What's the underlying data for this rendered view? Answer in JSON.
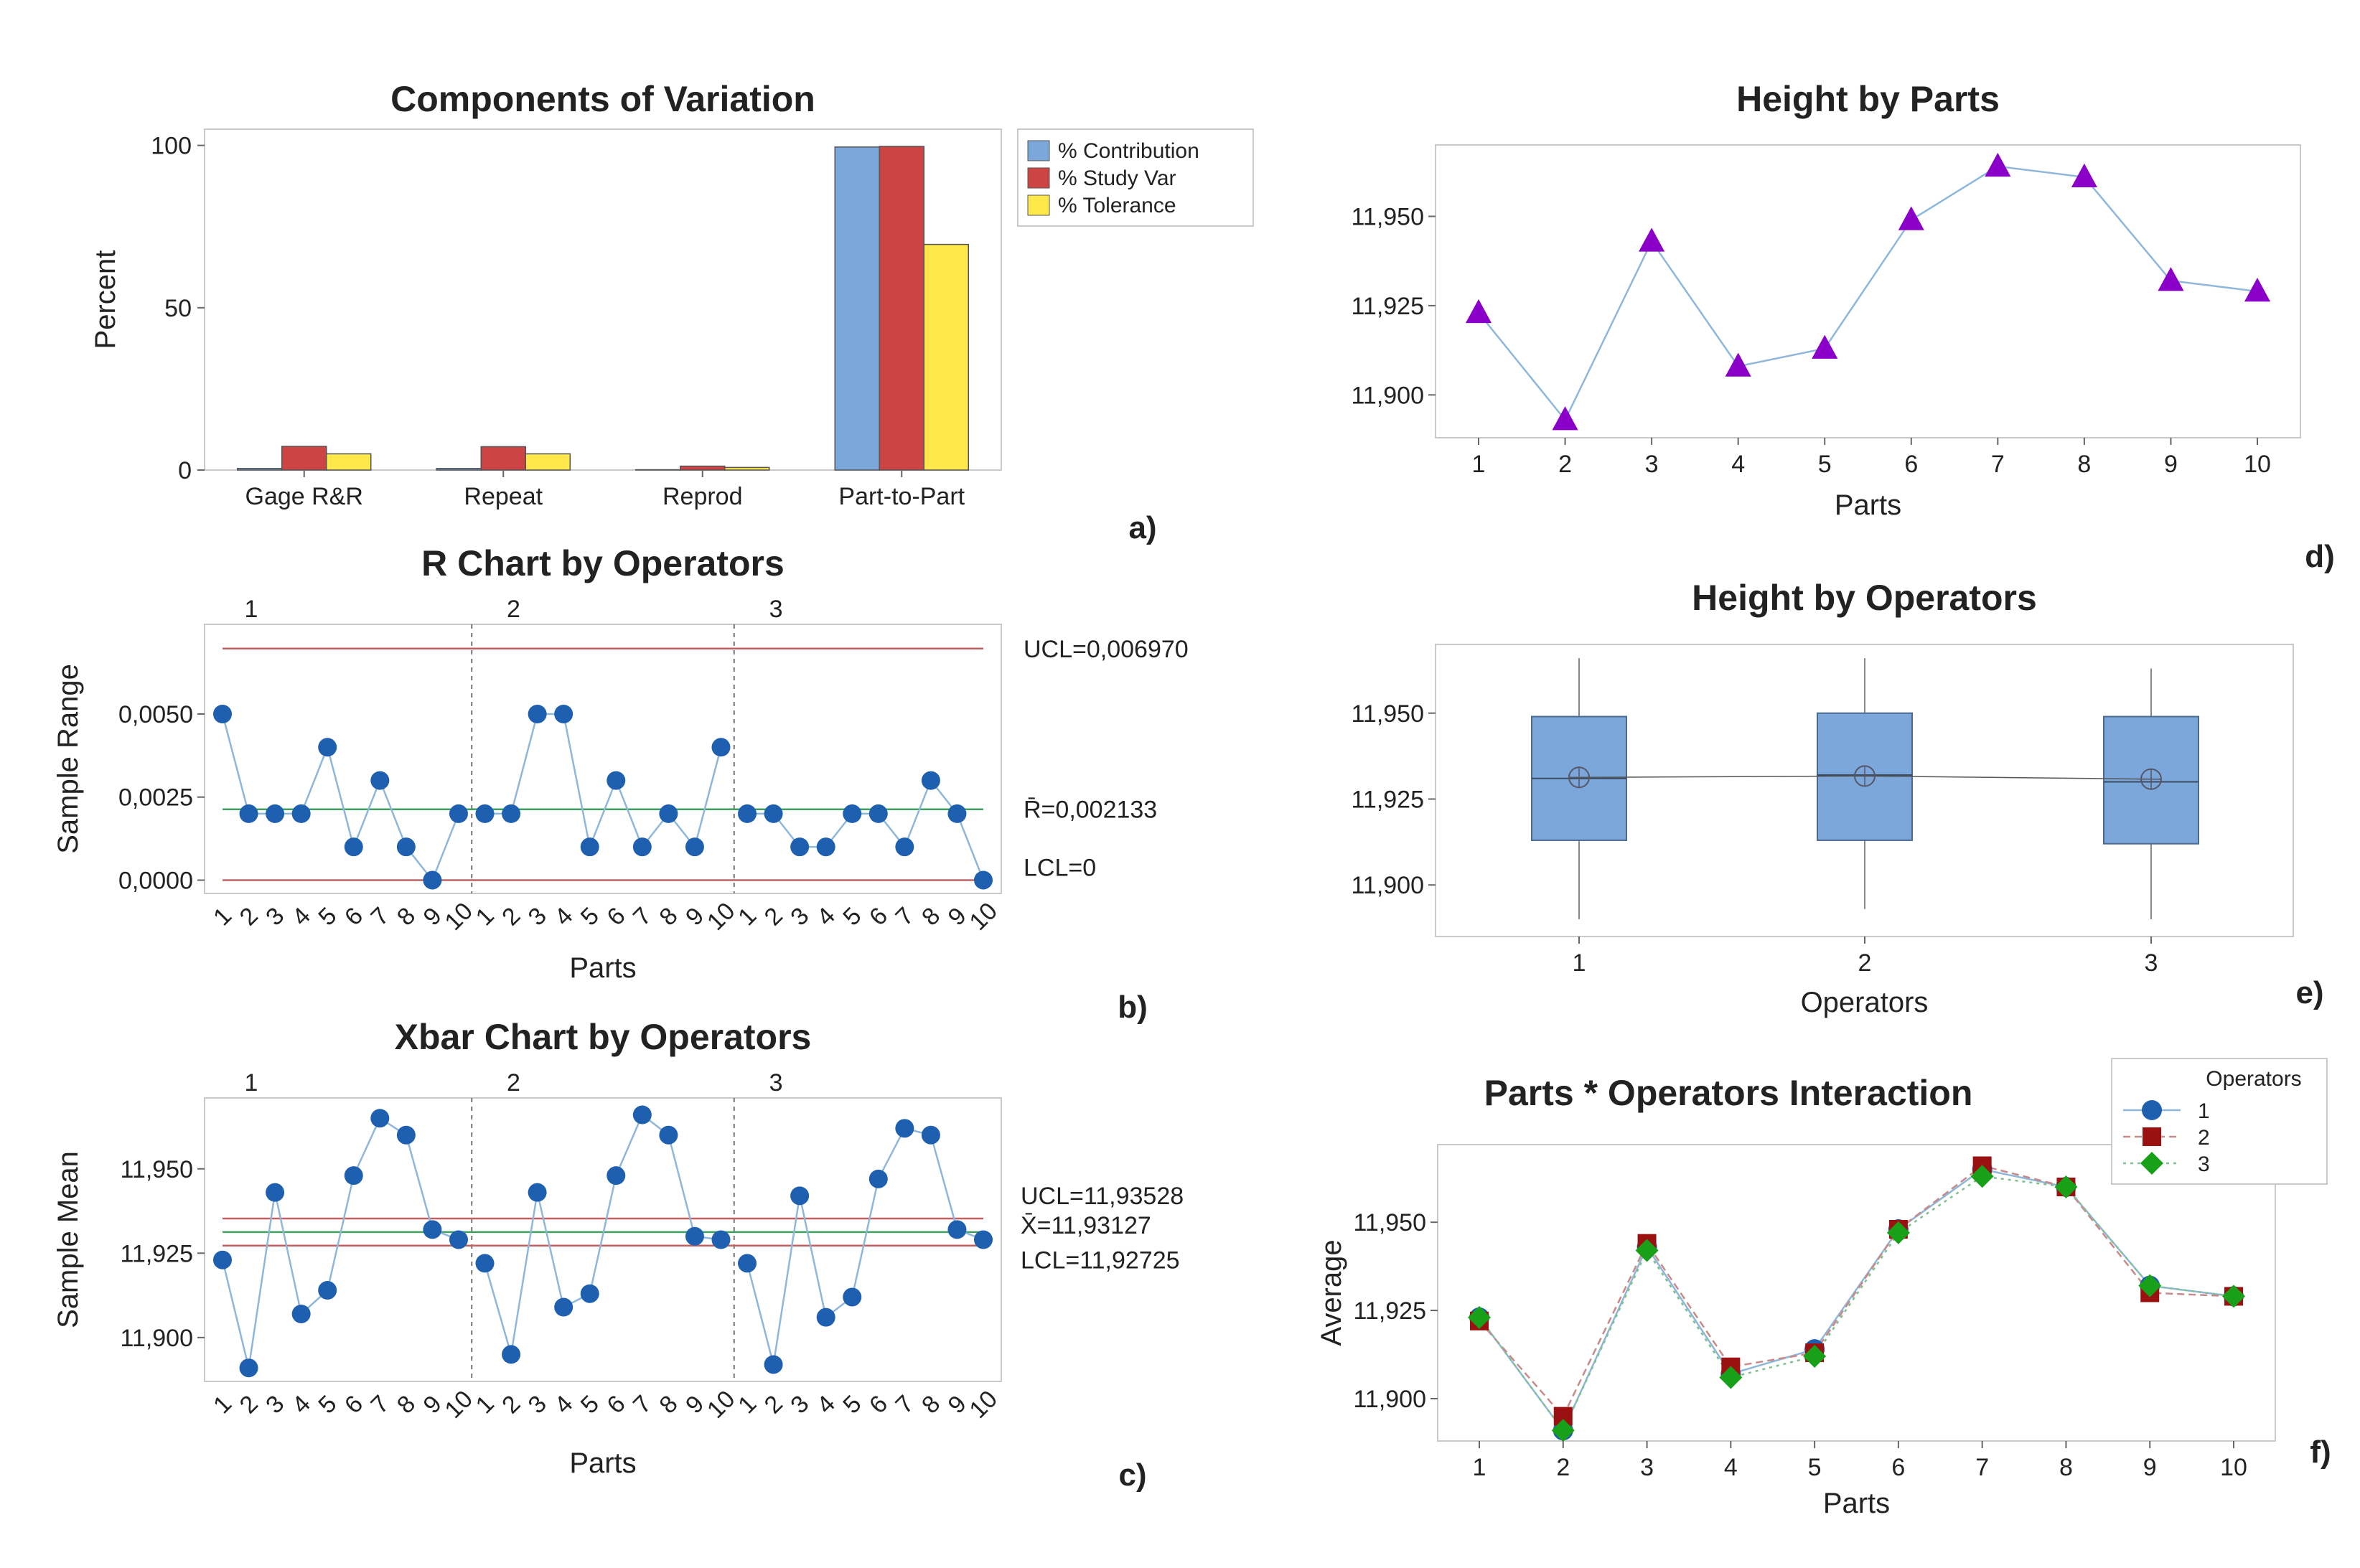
{
  "colors": {
    "contribution": "#7BA7DB",
    "study_var": "#CC4444",
    "tolerance": "#FFE84A",
    "marker_blue": "#1F5FAF",
    "line_blue": "#8FB7D9",
    "purple": "#8B00C9",
    "limit_red": "#C06060",
    "center_green": "#3FA060",
    "box_fill": "#7BA7DB",
    "op2_red": "#9B1111",
    "op3_green": "#18A018"
  },
  "chart_data": [
    {
      "id": "a",
      "type": "bar",
      "panel_label": "a)",
      "title": "Components of Variation",
      "xlabel": "",
      "ylabel": "Percent",
      "categories": [
        "Gage R&R",
        "Repeat",
        "Reprod",
        "Part-to-Part"
      ],
      "series": [
        {
          "name": "% Contribution",
          "values": [
            0.5,
            0.5,
            0.1,
            99.5
          ]
        },
        {
          "name": "% Study Var",
          "values": [
            7.3,
            7.2,
            1.2,
            99.7
          ]
        },
        {
          "name": "% Tolerance",
          "values": [
            5.0,
            5.0,
            0.8,
            69.5
          ]
        }
      ],
      "ylim": [
        0,
        105
      ],
      "yticks": [
        0,
        50,
        100
      ],
      "ytick_labels": [
        "0",
        "50",
        "100"
      ],
      "legend": "right"
    },
    {
      "id": "b",
      "type": "line",
      "panel_label": "b)",
      "title": "R Chart by Operators",
      "xlabel": "Parts",
      "ylabel": "Sample Range",
      "groups": [
        "1",
        "2",
        "3"
      ],
      "x_tick_labels": [
        "1",
        "2",
        "3",
        "4",
        "5",
        "6",
        "7",
        "8",
        "9",
        "10"
      ],
      "values": [
        0.005,
        0.002,
        0.002,
        0.002,
        0.004,
        0.001,
        0.003,
        0.001,
        0.0,
        0.002,
        0.002,
        0.002,
        0.005,
        0.005,
        0.001,
        0.003,
        0.001,
        0.002,
        0.001,
        0.004,
        0.002,
        0.002,
        0.001,
        0.001,
        0.002,
        0.002,
        0.001,
        0.003,
        0.002,
        0.0
      ],
      "ylim": [
        -0.0004,
        0.0077
      ],
      "yticks": [
        0.0,
        0.0025,
        0.005
      ],
      "ytick_labels": [
        "0,0000",
        "0,0025",
        "0,0050"
      ],
      "limits": {
        "ucl": 0.00697,
        "center": 0.002133,
        "lcl": 0.0
      },
      "limit_labels": {
        "ucl": "UCL=0,006970",
        "center": "R̄=0,002133",
        "lcl": "LCL=0"
      }
    },
    {
      "id": "c",
      "type": "line",
      "panel_label": "c)",
      "title": "Xbar Chart by Operators",
      "xlabel": "Parts",
      "ylabel": "Sample Mean",
      "groups": [
        "1",
        "2",
        "3"
      ],
      "x_tick_labels": [
        "1",
        "2",
        "3",
        "4",
        "5",
        "6",
        "7",
        "8",
        "9",
        "10"
      ],
      "values": [
        11.923,
        11.891,
        11.943,
        11.907,
        11.914,
        11.948,
        11.965,
        11.96,
        11.932,
        11.929,
        11.922,
        11.895,
        11.943,
        11.909,
        11.913,
        11.948,
        11.966,
        11.96,
        11.93,
        11.929,
        11.922,
        11.892,
        11.942,
        11.906,
        11.912,
        11.947,
        11.962,
        11.96,
        11.932,
        11.929
      ],
      "ylim": [
        11.887,
        11.971
      ],
      "yticks": [
        11.9,
        11.925,
        11.95
      ],
      "ytick_labels": [
        "11,900",
        "11,925",
        "11,950"
      ],
      "limits": {
        "ucl": 11.93528,
        "center": 11.93127,
        "lcl": 11.92725
      },
      "limit_labels": {
        "ucl": "UCL=11,93528",
        "center": "X̄=11,93127",
        "lcl": "LCL=11,92725"
      }
    },
    {
      "id": "d",
      "type": "line",
      "panel_label": "d)",
      "title": "Height by Parts",
      "xlabel": "Parts",
      "ylabel": "",
      "x": [
        "1",
        "2",
        "3",
        "4",
        "5",
        "6",
        "7",
        "8",
        "9",
        "10"
      ],
      "values": [
        11.923,
        11.893,
        11.943,
        11.908,
        11.913,
        11.949,
        11.964,
        11.961,
        11.932,
        11.929
      ],
      "ylim": [
        11.888,
        11.97
      ],
      "yticks": [
        11.9,
        11.925,
        11.95
      ],
      "ytick_labels": [
        "11,900",
        "11,925",
        "11,950"
      ]
    },
    {
      "id": "e",
      "type": "box",
      "panel_label": "e)",
      "title": "Height by Operators",
      "xlabel": "Operators",
      "ylabel": "",
      "categories": [
        "1",
        "2",
        "3"
      ],
      "boxes": [
        {
          "min": 11.89,
          "q1": 11.913,
          "median": 11.931,
          "q3": 11.949,
          "max": 11.966,
          "mean": 11.9313
        },
        {
          "min": 11.893,
          "q1": 11.913,
          "median": 11.932,
          "q3": 11.95,
          "max": 11.966,
          "mean": 11.9317
        },
        {
          "min": 11.89,
          "q1": 11.912,
          "median": 11.93,
          "q3": 11.949,
          "max": 11.963,
          "mean": 11.9308
        }
      ],
      "ylim": [
        11.885,
        11.97
      ],
      "yticks": [
        11.9,
        11.925,
        11.95
      ],
      "ytick_labels": [
        "11,900",
        "11,925",
        "11,950"
      ]
    },
    {
      "id": "f",
      "type": "line",
      "panel_label": "f)",
      "title": "Parts * Operators Interaction",
      "xlabel": "Parts",
      "ylabel": "Average",
      "x": [
        "1",
        "2",
        "3",
        "4",
        "5",
        "6",
        "7",
        "8",
        "9",
        "10"
      ],
      "legend_title": "Operators",
      "series": [
        {
          "name": "1",
          "values": [
            11.923,
            11.891,
            11.943,
            11.907,
            11.914,
            11.948,
            11.965,
            11.96,
            11.932,
            11.929
          ]
        },
        {
          "name": "2",
          "values": [
            11.922,
            11.895,
            11.944,
            11.909,
            11.913,
            11.948,
            11.966,
            11.96,
            11.93,
            11.929
          ]
        },
        {
          "name": "3",
          "values": [
            11.923,
            11.891,
            11.942,
            11.906,
            11.912,
            11.947,
            11.963,
            11.96,
            11.932,
            11.929
          ]
        }
      ],
      "ylim": [
        11.888,
        11.972
      ],
      "yticks": [
        11.9,
        11.925,
        11.95
      ],
      "ytick_labels": [
        "11,900",
        "11,925",
        "11,950"
      ],
      "legend": "top-right"
    }
  ]
}
